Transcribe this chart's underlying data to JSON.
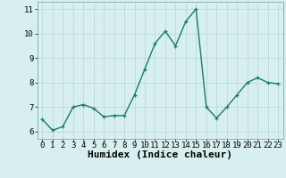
{
  "x": [
    0,
    1,
    2,
    3,
    4,
    5,
    6,
    7,
    8,
    9,
    10,
    11,
    12,
    13,
    14,
    15,
    16,
    17,
    18,
    19,
    20,
    21,
    22,
    23
  ],
  "y": [
    6.5,
    6.05,
    6.2,
    7.0,
    7.1,
    6.95,
    6.6,
    6.65,
    6.65,
    7.5,
    8.55,
    9.6,
    10.1,
    9.5,
    10.5,
    11.0,
    7.0,
    6.55,
    7.0,
    7.5,
    8.0,
    8.2,
    8.0,
    7.95
  ],
  "line_color": "#1a7a6e",
  "marker": "+",
  "bg_color": "#d7f0ef",
  "grid_color": "#b8dbd9",
  "xlabel": "Humidex (Indice chaleur)",
  "xlim": [
    -0.5,
    23.5
  ],
  "ylim": [
    5.7,
    11.3
  ],
  "yticks": [
    6,
    7,
    8,
    9,
    10,
    11
  ],
  "xticks": [
    0,
    1,
    2,
    3,
    4,
    5,
    6,
    7,
    8,
    9,
    10,
    11,
    12,
    13,
    14,
    15,
    16,
    17,
    18,
    19,
    20,
    21,
    22,
    23
  ],
  "tick_fontsize": 6.5,
  "xlabel_fontsize": 8.0,
  "linewidth": 1.0,
  "markersize": 3.5,
  "markeredgewidth": 0.9
}
